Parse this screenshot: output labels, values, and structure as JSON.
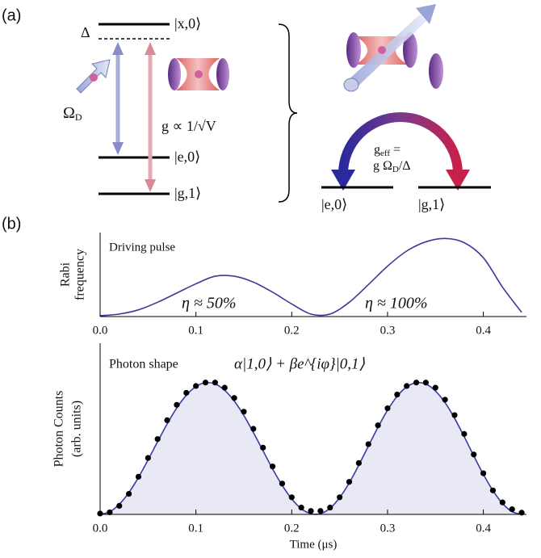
{
  "panel_a": {
    "label": "(a)",
    "delta": "Δ",
    "levels": {
      "x0": "|x,0⟩",
      "e0": "|e,0⟩",
      "g1": "|g,1⟩"
    },
    "omega": {
      "symbol": "Ω",
      "sub": "D"
    },
    "coupling": "g ∝ 1/√V",
    "g_eff": {
      "symbol": "g",
      "sub": "eff",
      "eq": "="
    },
    "g_eff_expr": {
      "head": "g Ω",
      "sub": "D",
      "tail": "/Δ"
    },
    "right_levels": {
      "e0": "|e,0⟩",
      "g1": "|g,1⟩"
    }
  },
  "panel_b": {
    "label": "(b)"
  },
  "chart_data": [
    {
      "type": "line",
      "ylabel": [
        "Rabi",
        "frequency"
      ],
      "annotations": [
        "Driving pulse",
        "η ≈ 50%",
        "η ≈ 100%"
      ],
      "x": [
        0,
        0.02,
        0.04,
        0.06,
        0.08,
        0.1,
        0.12,
        0.14,
        0.16,
        0.18,
        0.2,
        0.22,
        0.24,
        0.26,
        0.28,
        0.3,
        0.32,
        0.34,
        0.36,
        0.38,
        0.4,
        0.42,
        0.44
      ],
      "series": [
        {
          "color": "#3a3a9a",
          "values": [
            0.01,
            0.03,
            0.08,
            0.17,
            0.28,
            0.39,
            0.48,
            0.48,
            0.41,
            0.29,
            0.15,
            0.03,
            0.03,
            0.17,
            0.38,
            0.6,
            0.78,
            0.89,
            0.93,
            0.88,
            0.7,
            0.35,
            0.05
          ]
        }
      ],
      "xlim": [
        0,
        0.445
      ],
      "ylim": [
        0,
        1
      ],
      "xticks": [
        {
          "value": 0,
          "label": "0.0"
        },
        {
          "value": 0.1,
          "label": "0.1"
        },
        {
          "value": 0.2,
          "label": "0.2"
        },
        {
          "value": 0.3,
          "label": "0.3"
        },
        {
          "value": 0.4,
          "label": "0.4"
        }
      ]
    },
    {
      "type": "line",
      "ylabel": [
        "Photon Counts",
        "(arb. units)"
      ],
      "xlabel": "Time (μs)",
      "annotations": [
        "Photon shape",
        "α|1,0⟩ + βe^{iφ}|0,1⟩"
      ],
      "x": [
        0,
        0.01,
        0.02,
        0.03,
        0.04,
        0.05,
        0.06,
        0.07,
        0.08,
        0.09,
        0.1,
        0.11,
        0.12,
        0.13,
        0.14,
        0.15,
        0.16,
        0.17,
        0.18,
        0.19,
        0.2,
        0.21,
        0.22,
        0.23,
        0.24,
        0.25,
        0.26,
        0.27,
        0.28,
        0.29,
        0.3,
        0.31,
        0.32,
        0.33,
        0.34,
        0.35,
        0.36,
        0.37,
        0.38,
        0.39,
        0.4,
        0.41,
        0.42,
        0.43,
        0.44
      ],
      "series": [
        {
          "color": "#3a3aa8",
          "fill": "#e9e9f6",
          "values": [
            0,
            0.015,
            0.059,
            0.127,
            0.216,
            0.318,
            0.425,
            0.529,
            0.622,
            0.696,
            0.747,
            0.769,
            0.762,
            0.725,
            0.662,
            0.578,
            0.478,
            0.372,
            0.266,
            0.17,
            0.09,
            0.033,
            0.004,
            0.004,
            0.036,
            0.098,
            0.184,
            0.288,
            0.399,
            0.509,
            0.609,
            0.69,
            0.745,
            0.769,
            0.761,
            0.721,
            0.653,
            0.561,
            0.454,
            0.342,
            0.234,
            0.139,
            0.064,
            0.016,
            0
          ]
        },
        {
          "color": "#000000",
          "marker": "dot",
          "values": [
            0.005,
            0.012,
            0.05,
            0.12,
            0.22,
            0.33,
            0.44,
            0.55,
            0.64,
            0.71,
            0.75,
            0.77,
            0.77,
            0.74,
            0.68,
            0.6,
            0.5,
            0.39,
            0.28,
            0.18,
            0.1,
            0.04,
            0.02,
            0.02,
            0.04,
            0.1,
            0.19,
            0.3,
            0.41,
            0.52,
            0.62,
            0.7,
            0.75,
            0.77,
            0.77,
            0.74,
            0.67,
            0.58,
            0.47,
            0.35,
            0.24,
            0.14,
            0.07,
            0.03,
            0.01
          ]
        }
      ],
      "xlim": [
        0,
        0.445
      ],
      "ylim": [
        0,
        1
      ],
      "xticks": [
        {
          "value": 0,
          "label": "0.0"
        },
        {
          "value": 0.1,
          "label": "0.1"
        },
        {
          "value": 0.2,
          "label": "0.2"
        },
        {
          "value": 0.3,
          "label": "0.3"
        },
        {
          "value": 0.4,
          "label": "0.4"
        }
      ]
    }
  ]
}
